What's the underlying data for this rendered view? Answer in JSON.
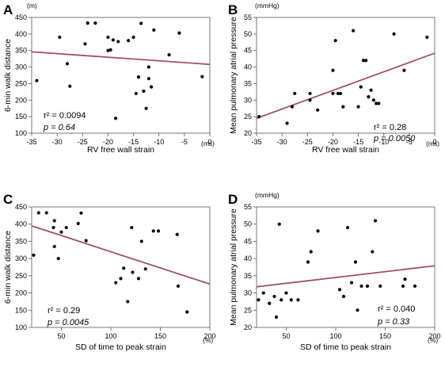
{
  "chart_data": [
    {
      "panel": "A",
      "type": "scatter",
      "xlabel": "RV free wall strain",
      "ylabel": "6-min walk distance",
      "xunit": "(ms)",
      "yunit": "(m)",
      "xlim": [
        -35,
        0
      ],
      "ylim": [
        100,
        450
      ],
      "xticks": [
        -35,
        -30,
        -25,
        -20,
        -15,
        -10,
        -5,
        0
      ],
      "yticks": [
        100,
        150,
        200,
        250,
        300,
        350,
        400,
        450
      ],
      "xtick_labels": [
        "-35",
        "-30",
        "-25",
        "-20",
        "-15",
        "-10",
        "-5",
        "0"
      ],
      "ytick_labels": [
        "100",
        "150",
        "200",
        "250",
        "300",
        "350",
        "400",
        "450"
      ],
      "stat_r2": "r² =  0.0094",
      "stat_p": "p = 0.64",
      "fit": {
        "x": [
          -35,
          0
        ],
        "y": [
          346,
          308
        ]
      },
      "points": [
        [
          -34,
          259
        ],
        [
          -29.5,
          390
        ],
        [
          -28,
          310
        ],
        [
          -27.5,
          242
        ],
        [
          -24.5,
          370
        ],
        [
          -24,
          433
        ],
        [
          -22.5,
          433
        ],
        [
          -20,
          390
        ],
        [
          -20,
          350
        ],
        [
          -19.5,
          352
        ],
        [
          -19,
          382
        ],
        [
          -18.5,
          145
        ],
        [
          -18,
          377
        ],
        [
          -16,
          380
        ],
        [
          -15,
          390
        ],
        [
          -14.5,
          220
        ],
        [
          -14,
          270
        ],
        [
          -13.5,
          432
        ],
        [
          -13,
          227
        ],
        [
          -12.5,
          175
        ],
        [
          -12,
          265
        ],
        [
          -12,
          300
        ],
        [
          -11.5,
          240
        ],
        [
          -11,
          412
        ],
        [
          -8,
          337
        ],
        [
          -6,
          403
        ],
        [
          -1.5,
          271
        ]
      ]
    },
    {
      "panel": "B",
      "type": "scatter",
      "xlabel": "RV free wall strain",
      "ylabel": "Mean pulmonary atrial pressure",
      "xunit": "(ms)",
      "yunit": "(mmHg)",
      "xlim": [
        -35,
        0
      ],
      "ylim": [
        20,
        55
      ],
      "xticks": [
        -35,
        -30,
        -25,
        -20,
        -15,
        -10,
        -5,
        0
      ],
      "yticks": [
        20,
        25,
        30,
        35,
        40,
        45,
        50,
        55
      ],
      "xtick_labels": [
        "-35",
        "-30",
        "-25",
        "-20",
        "-15",
        "-10",
        "-5",
        "0"
      ],
      "ytick_labels": [
        "20",
        "25",
        "30",
        "35",
        "40",
        "45",
        "50",
        "55"
      ],
      "stat_r2": "r² =  0.28",
      "stat_p": "p = 0.0050",
      "fit": {
        "x": [
          -35,
          0
        ],
        "y": [
          24.5,
          44.2
        ]
      },
      "points": [
        [
          -34.5,
          25
        ],
        [
          -29,
          23
        ],
        [
          -28,
          28
        ],
        [
          -27.5,
          32
        ],
        [
          -24.5,
          32
        ],
        [
          -24.5,
          30
        ],
        [
          -23,
          27
        ],
        [
          -20,
          39
        ],
        [
          -20,
          32
        ],
        [
          -19.5,
          48
        ],
        [
          -19,
          32
        ],
        [
          -18.5,
          32
        ],
        [
          -18,
          28
        ],
        [
          -16,
          51
        ],
        [
          -15,
          28
        ],
        [
          -14.5,
          34
        ],
        [
          -14,
          42
        ],
        [
          -13.5,
          42
        ],
        [
          -13,
          31
        ],
        [
          -12.5,
          33
        ],
        [
          -12,
          30
        ],
        [
          -11.5,
          29
        ],
        [
          -11,
          29
        ],
        [
          -8,
          50
        ],
        [
          -6,
          39
        ],
        [
          -1.5,
          49
        ]
      ]
    },
    {
      "panel": "C",
      "type": "scatter",
      "xlabel": "SD of time to peak strain",
      "ylabel": "6-min walk distance",
      "xunit": "(%)",
      "yunit": "",
      "xlim": [
        20,
        200
      ],
      "ylim": [
        100,
        450
      ],
      "xticks": [
        50,
        100,
        150,
        200
      ],
      "yticks": [
        100,
        150,
        200,
        250,
        300,
        350,
        400,
        450
      ],
      "xtick_labels": [
        "50",
        "100",
        "150",
        "200"
      ],
      "ytick_labels": [
        "100",
        "150",
        "200",
        "250",
        "300",
        "350",
        "400",
        "450"
      ],
      "stat_r2": "r² = 0.29",
      "stat_p": "p = 0.0045",
      "fit": {
        "x": [
          20,
          200
        ],
        "y": [
          395,
          226
        ]
      },
      "points": [
        [
          22,
          310
        ],
        [
          27,
          433
        ],
        [
          35,
          433
        ],
        [
          42,
          390
        ],
        [
          43,
          335
        ],
        [
          43,
          410
        ],
        [
          47,
          300
        ],
        [
          50,
          377
        ],
        [
          55,
          390
        ],
        [
          67,
          402
        ],
        [
          70,
          432
        ],
        [
          75,
          352
        ],
        [
          105,
          230
        ],
        [
          110,
          242
        ],
        [
          113,
          272
        ],
        [
          117,
          175
        ],
        [
          121,
          390
        ],
        [
          122,
          260
        ],
        [
          128,
          242
        ],
        [
          131,
          350
        ],
        [
          135,
          270
        ],
        [
          143,
          380
        ],
        [
          148,
          380
        ],
        [
          167,
          370
        ],
        [
          168,
          220
        ],
        [
          177,
          145
        ]
      ]
    },
    {
      "panel": "D",
      "type": "scatter",
      "xlabel": "SD of time to peak strain",
      "ylabel": "Mean pulmonary atrial pressure",
      "xunit": "(%)",
      "yunit": "(mmHg)",
      "xlim": [
        20,
        200
      ],
      "ylim": [
        20,
        55
      ],
      "xticks": [
        50,
        100,
        150,
        200
      ],
      "yticks": [
        20,
        25,
        30,
        35,
        40,
        45,
        50,
        55
      ],
      "xtick_labels": [
        "50",
        "100",
        "150",
        "200"
      ],
      "ytick_labels": [
        "20",
        "25",
        "30",
        "35",
        "40",
        "45",
        "50",
        "55"
      ],
      "stat_r2": "r² =  0.040",
      "stat_p": "p = 0.33",
      "fit": {
        "x": [
          20,
          200
        ],
        "y": [
          31.8,
          37.9
        ]
      },
      "points": [
        [
          22,
          28
        ],
        [
          27,
          30
        ],
        [
          33,
          27
        ],
        [
          38,
          29
        ],
        [
          40,
          23
        ],
        [
          43,
          50
        ],
        [
          45,
          28
        ],
        [
          50,
          30
        ],
        [
          55,
          28
        ],
        [
          62,
          28
        ],
        [
          72,
          39
        ],
        [
          75,
          42
        ],
        [
          82,
          48
        ],
        [
          104,
          31
        ],
        [
          108,
          29
        ],
        [
          112,
          49
        ],
        [
          116,
          33
        ],
        [
          120,
          39
        ],
        [
          122,
          25
        ],
        [
          126,
          32
        ],
        [
          132,
          32
        ],
        [
          137,
          42
        ],
        [
          140,
          51
        ],
        [
          145,
          32
        ],
        [
          168,
          32
        ],
        [
          170,
          34
        ],
        [
          180,
          32
        ]
      ]
    }
  ]
}
